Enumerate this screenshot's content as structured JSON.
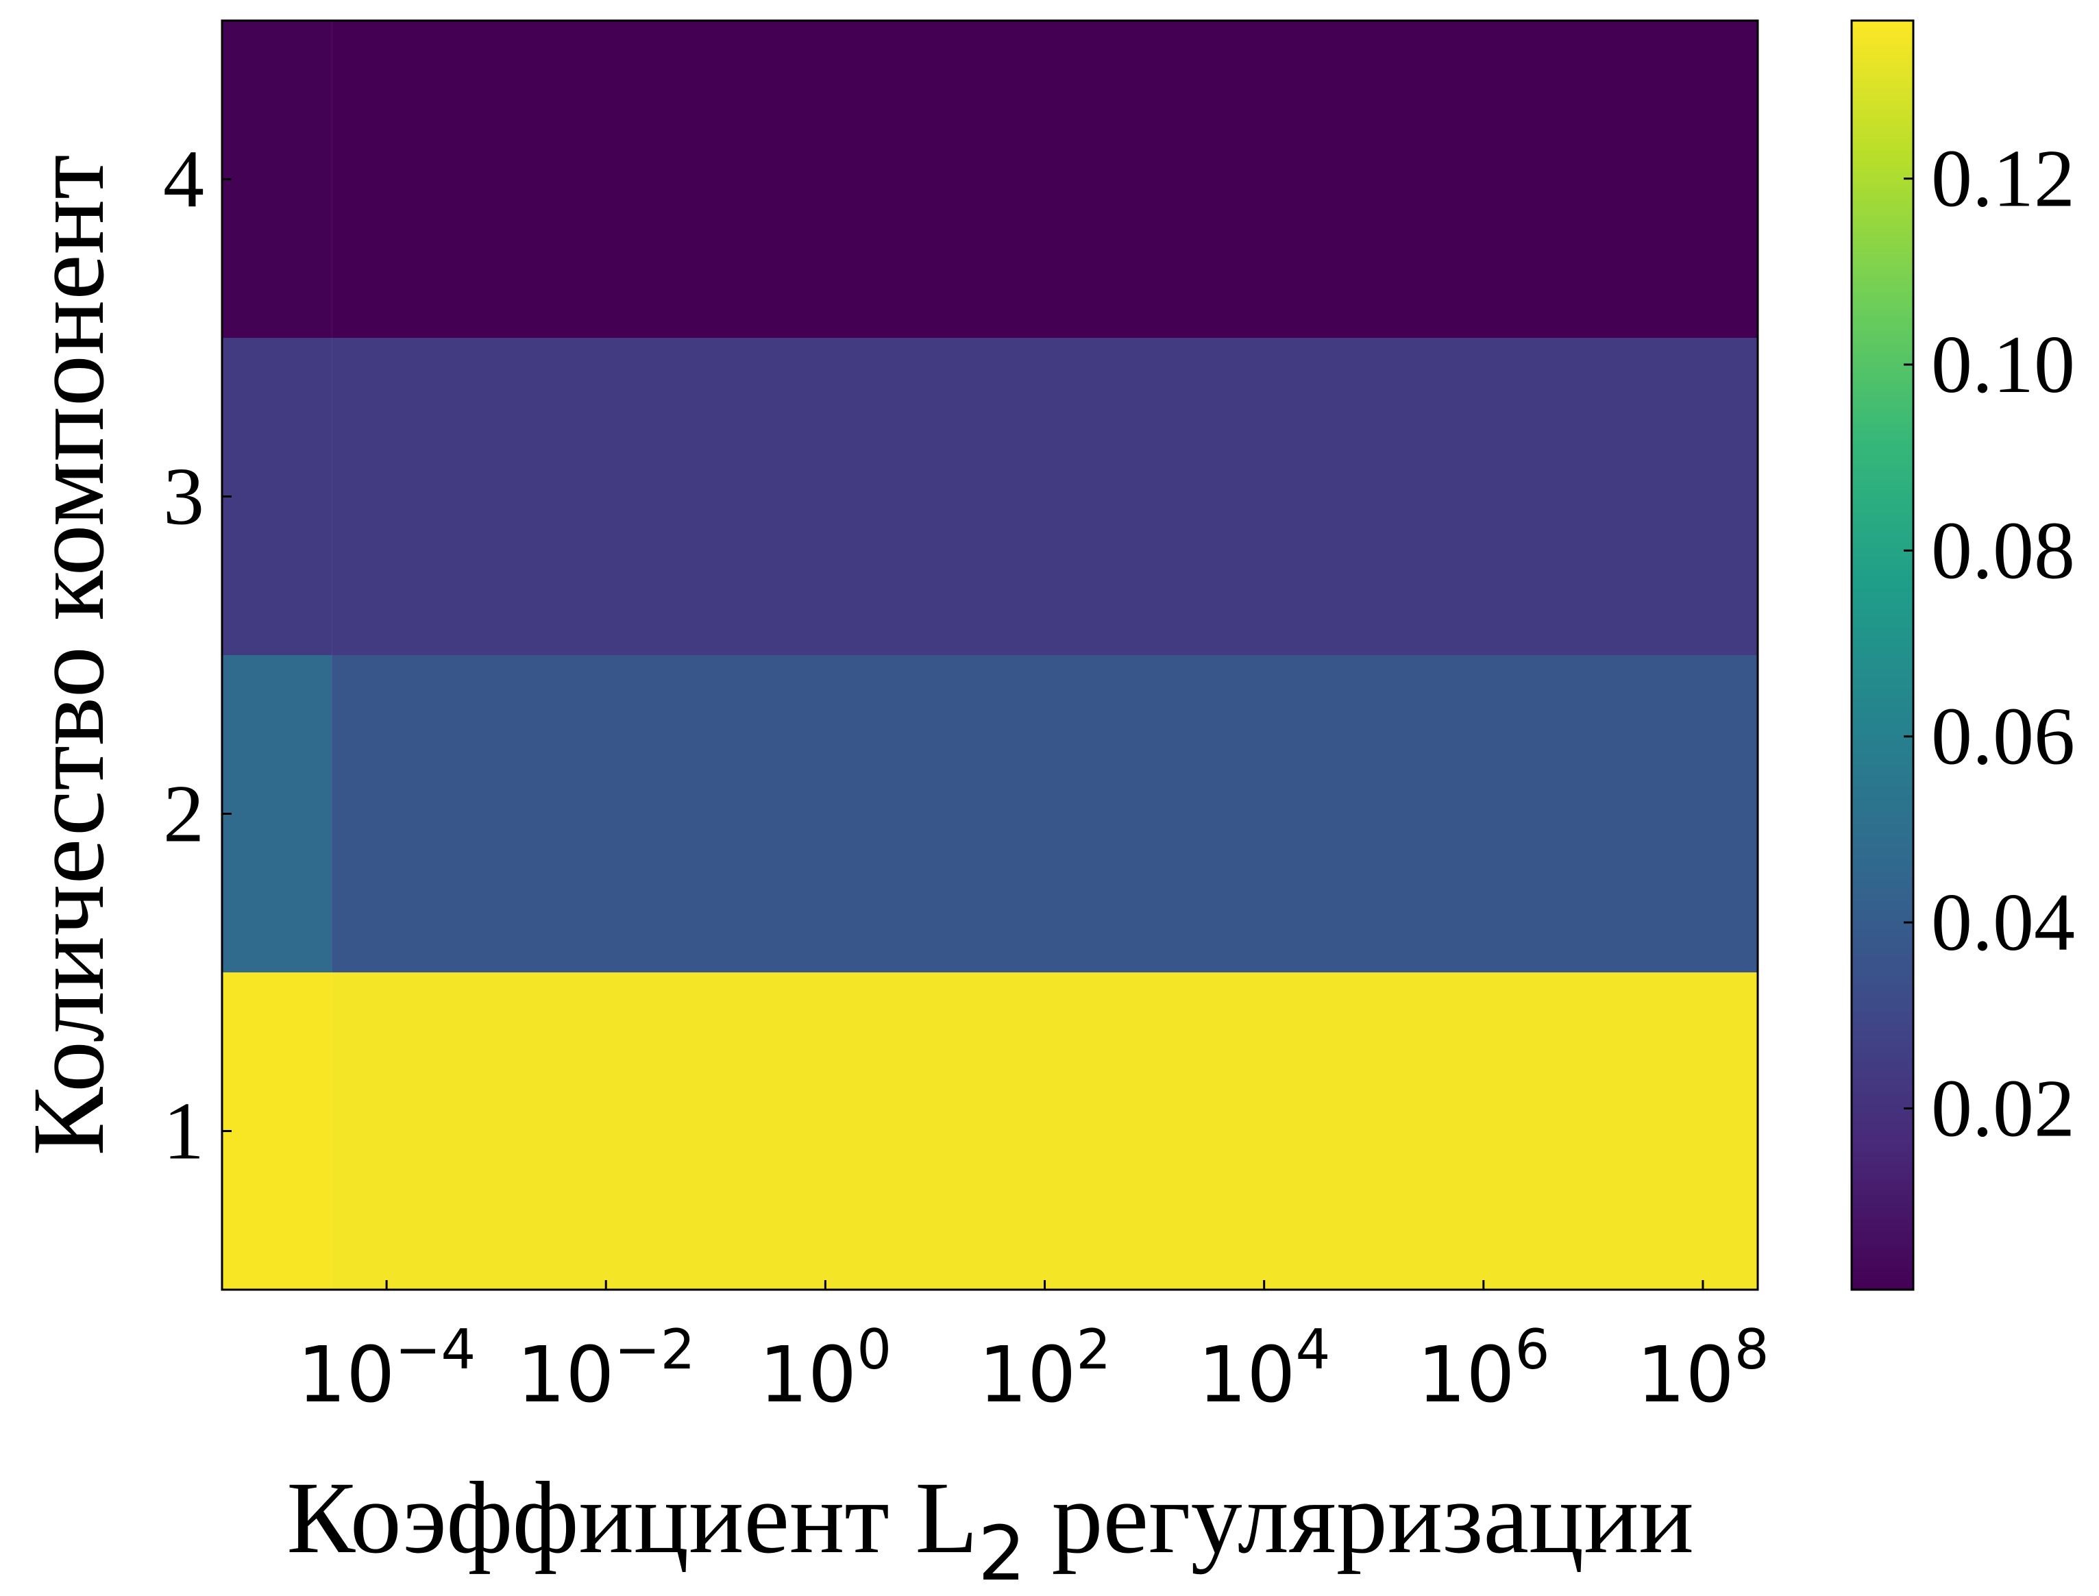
{
  "chart_data": {
    "type": "heatmap",
    "title": "",
    "xlabel": "Коэффициент L",
    "xlabel_subscript": "2",
    "xlabel_suffix": " регуляризации",
    "ylabel": "Количество компонент",
    "x_scale": "log",
    "x_tick_base": "10",
    "x_tick_exponents": [
      "−4",
      "−2",
      "0",
      "2",
      "4",
      "6",
      "8"
    ],
    "x_range_log10": [
      -5.5,
      8.5
    ],
    "y_ticks": [
      "1",
      "2",
      "3",
      "4"
    ],
    "y_range": [
      0.5,
      4.5
    ],
    "x_columns_log10": [
      -5.5,
      -4.5,
      8.5
    ],
    "rows": [
      {
        "components": 1,
        "values": [
          0.136,
          0.135
        ]
      },
      {
        "components": 2,
        "values": [
          0.048,
          0.037
        ]
      },
      {
        "components": 3,
        "values": [
          0.024,
          0.024
        ]
      },
      {
        "components": 4,
        "values": [
          0.001,
          0.0005
        ]
      }
    ],
    "colorbar": {
      "ticks": [
        "0.02",
        "0.04",
        "0.06",
        "0.08",
        "0.10",
        "0.12"
      ],
      "tick_values": [
        0.02,
        0.04,
        0.06,
        0.08,
        0.1,
        0.12
      ],
      "range": [
        0.0005,
        0.137
      ],
      "colormap": "viridis"
    },
    "grid": false,
    "legend": "none"
  },
  "colors": {
    "viridis": [
      "#440154",
      "#482878",
      "#3e4a89",
      "#31688e",
      "#26828e",
      "#1f9e89",
      "#35b779",
      "#6ece58",
      "#b5de2b",
      "#fde725"
    ],
    "axis": "#000000"
  }
}
